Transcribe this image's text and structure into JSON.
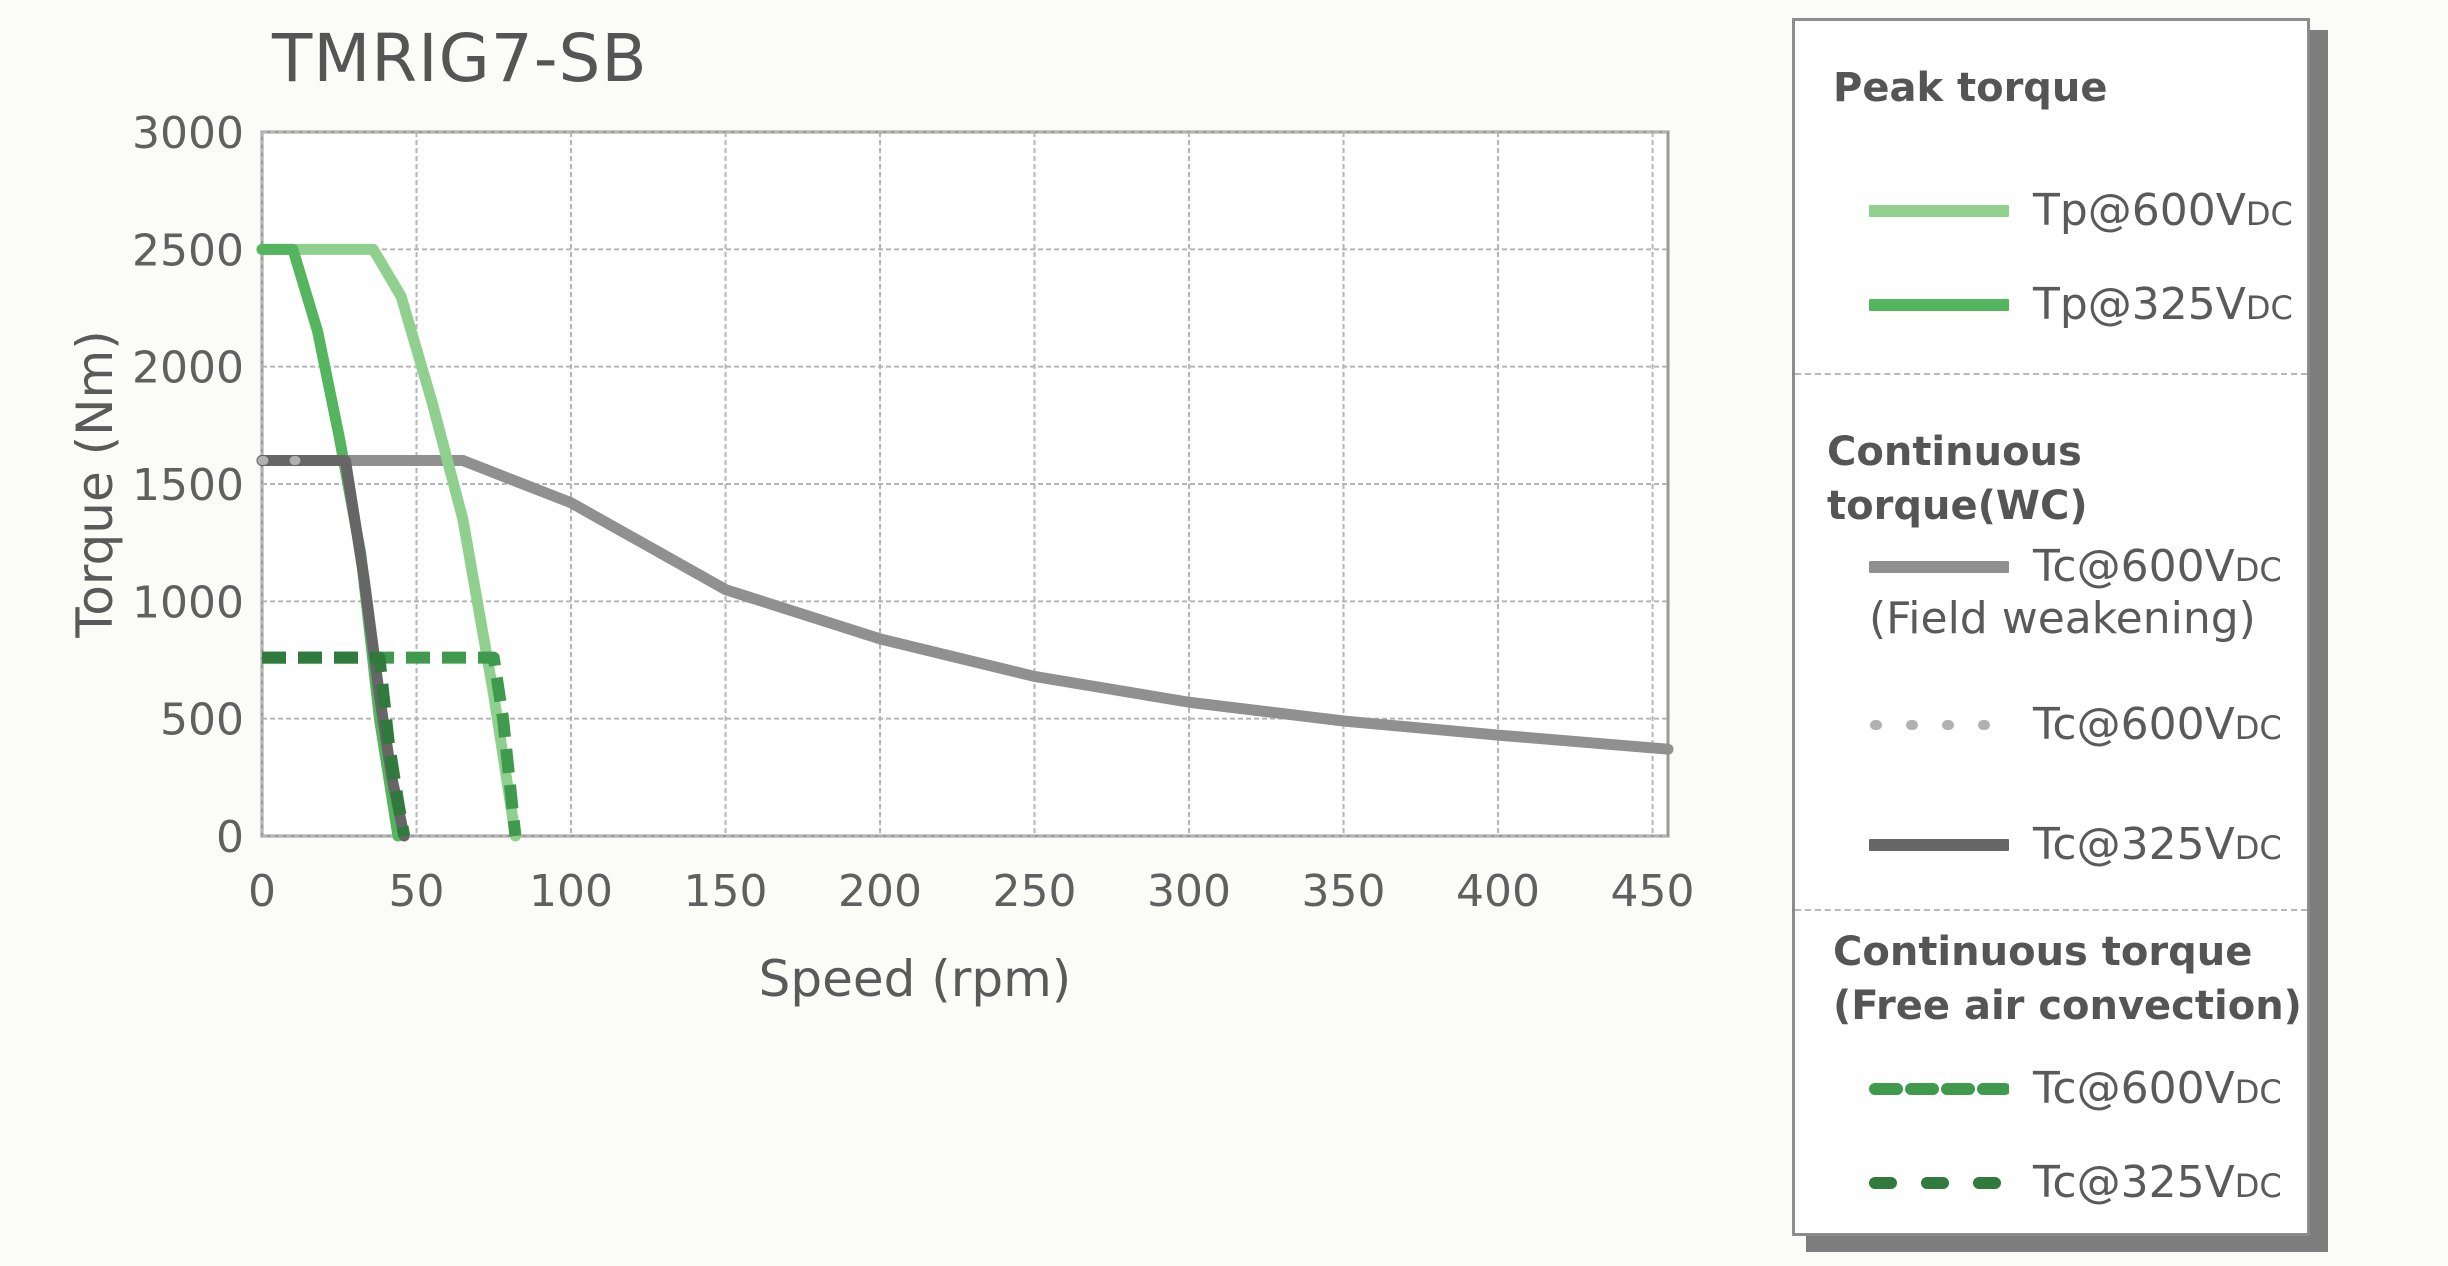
{
  "chart_data": {
    "type": "line",
    "title": "TMRIG7-SB",
    "xlabel": "Speed (rpm)",
    "ylabel": "Torque (Nm)",
    "xlim": [
      0,
      455
    ],
    "ylim": [
      0,
      3000
    ],
    "x_ticks": [
      "0",
      "50",
      "100",
      "150",
      "200",
      "250",
      "300",
      "350",
      "400",
      "450"
    ],
    "y_ticks": [
      "0",
      "500",
      "1000",
      "1500",
      "2000",
      "2500",
      "3000"
    ],
    "grid": true,
    "legend_position": "right",
    "series": [
      {
        "name": "Tp@600VDC",
        "group": "Peak torque",
        "color": "#8fd08f",
        "style": "solid",
        "x": [
          0,
          36,
          45,
          55,
          65,
          75,
          82
        ],
        "y": [
          2500,
          2500,
          2300,
          1850,
          1350,
          600,
          0
        ]
      },
      {
        "name": "Tp@325VDC",
        "group": "Peak torque",
        "color": "#55b45e",
        "style": "solid",
        "x": [
          0,
          10,
          18,
          25,
          32,
          38,
          44
        ],
        "y": [
          2500,
          2500,
          2150,
          1700,
          1200,
          500,
          0
        ]
      },
      {
        "name": "Tc@600VDC (Field weakening)",
        "group": "Continuous torque(WC)",
        "color": "#909090",
        "style": "solid",
        "x": [
          0,
          65,
          100,
          150,
          200,
          250,
          300,
          350,
          400,
          455
        ],
        "y": [
          1600,
          1600,
          1420,
          1050,
          840,
          680,
          570,
          490,
          430,
          370
        ]
      },
      {
        "name": "Tc@600VDC",
        "group": "Continuous torque(WC)",
        "color": "#b0b0b0",
        "style": "dotted",
        "x": [
          0,
          20
        ],
        "y": [
          1600,
          1600
        ]
      },
      {
        "name": "Tc@325VDC",
        "group": "Continuous torque(WC)",
        "color": "#666666",
        "style": "solid",
        "x": [
          0,
          27,
          33,
          38,
          42,
          46
        ],
        "y": [
          1600,
          1600,
          1100,
          600,
          250,
          0
        ]
      },
      {
        "name": "Tc@600VDC",
        "group": "Continuous torque (Free air convection)",
        "color": "#3f9a4d",
        "style": "dashed",
        "x": [
          0,
          75,
          78,
          80,
          82
        ],
        "y": [
          760,
          760,
          500,
          250,
          0
        ]
      },
      {
        "name": "Tc@325VDC",
        "group": "Continuous torque (Free air convection)",
        "color": "#2f7a3c",
        "style": "dashed",
        "x": [
          0,
          38,
          41,
          44,
          46
        ],
        "y": [
          760,
          760,
          400,
          150,
          0
        ]
      }
    ]
  },
  "legend": {
    "peak_heading": "Peak torque",
    "wc_heading": "Continuous torque(WC)",
    "free_heading_line1": "Continuous torque",
    "free_heading_line2": "(Free air convection)",
    "items": [
      {
        "prefix": "Tp@600V",
        "sub": "DC",
        "extra": ""
      },
      {
        "prefix": "Tp@325V",
        "sub": "DC",
        "extra": ""
      },
      {
        "prefix": "Tc@600V",
        "sub": "DC",
        "extra": "(Field weakening)"
      },
      {
        "prefix": "Tc@600V",
        "sub": "DC",
        "extra": ""
      },
      {
        "prefix": "Tc@325V",
        "sub": "DC",
        "extra": ""
      },
      {
        "prefix": "Tc@600V",
        "sub": "DC",
        "extra": ""
      },
      {
        "prefix": "Tc@325V",
        "sub": "DC",
        "extra": ""
      }
    ]
  }
}
